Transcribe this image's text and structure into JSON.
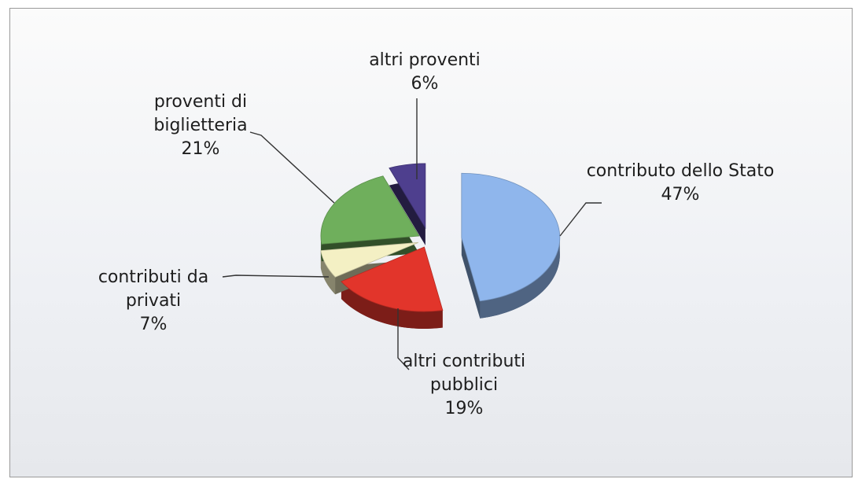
{
  "chart_data": {
    "type": "pie",
    "categories": [
      "contributo dello Stato",
      "altri contributi pubblici",
      "contributi da privati",
      "proventi di biglietteria",
      "altri proventi"
    ],
    "values": [
      47,
      19,
      7,
      21,
      6
    ],
    "value_labels": [
      "47%",
      "19%",
      "7%",
      "21%",
      "6%"
    ],
    "colors": [
      "#8fb6ec",
      "#e2352b",
      "#f4f0c4",
      "#6faf5c",
      "#4e3f8e"
    ]
  }
}
